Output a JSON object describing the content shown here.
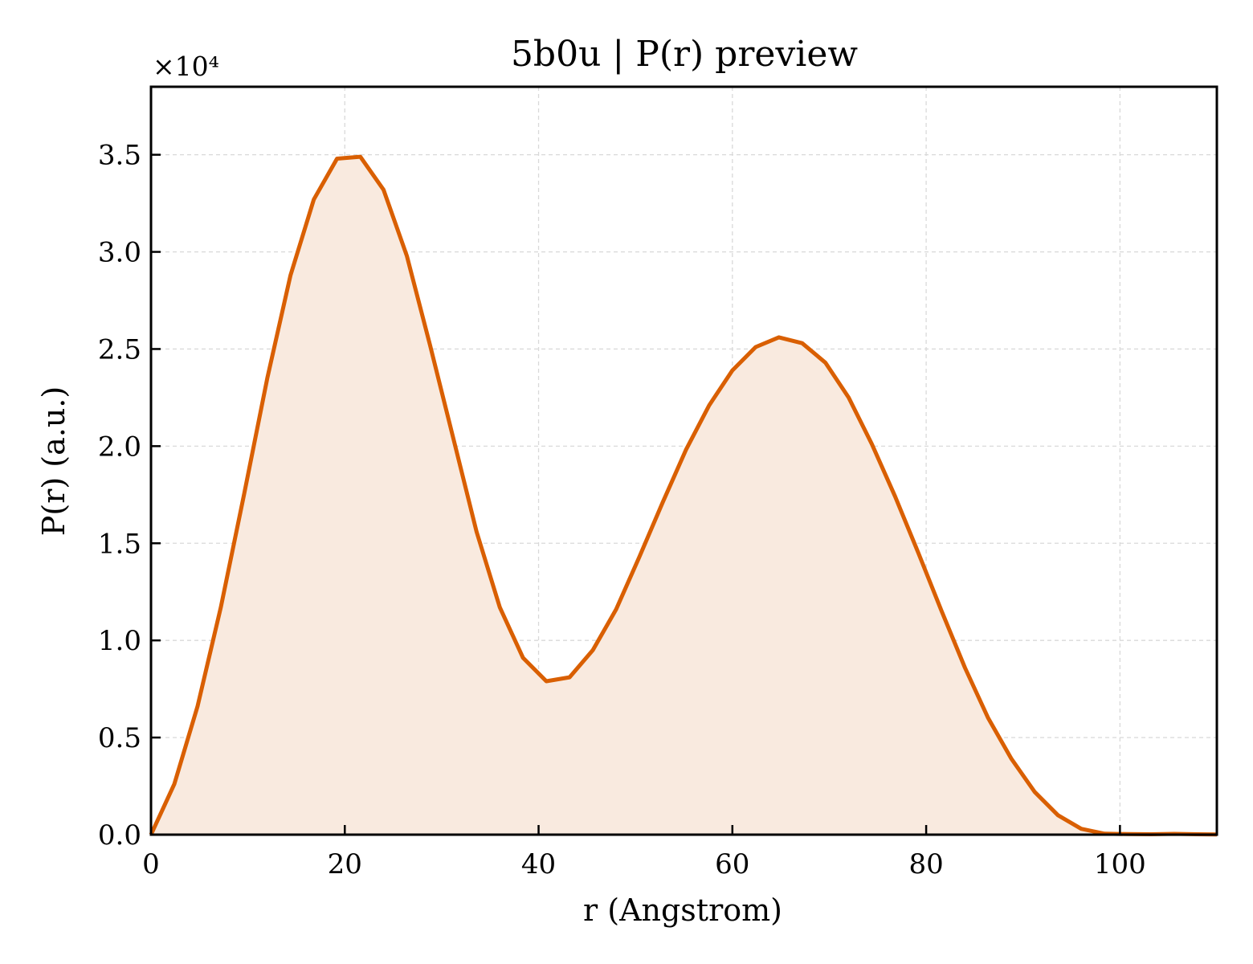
{
  "chart_data": {
    "type": "area",
    "title": "5b0u | P(r) preview",
    "xlabel": "r (Angstrom)",
    "ylabel": "P(r) (a.u.)",
    "y_multiplier_label": "×10⁴",
    "xlim": [
      0,
      110
    ],
    "ylim": [
      0,
      3.85
    ],
    "xticks": [
      0,
      20,
      40,
      60,
      80,
      100
    ],
    "xtick_labels": [
      "0",
      "20",
      "40",
      "60",
      "80",
      "100"
    ],
    "yticks": [
      0,
      0.5,
      1.0,
      1.5,
      2.0,
      2.5,
      3.0,
      3.5
    ],
    "ytick_labels": [
      "0.0",
      "0.5",
      "1.0",
      "1.5",
      "2.0",
      "2.5",
      "3.0",
      "3.5"
    ],
    "grid": true,
    "legend": "none",
    "line_color": "#d95f02",
    "fill_color": "#f9eadf",
    "series": [
      {
        "x": [
          0,
          2.4,
          4.8,
          7.2,
          9.6,
          12.0,
          14.4,
          16.8,
          19.2,
          21.6,
          24.0,
          26.4,
          28.8,
          31.2,
          33.6,
          36.0,
          38.4,
          40.8,
          43.2,
          45.6,
          48.0,
          50.4,
          52.8,
          55.2,
          57.6,
          60.0,
          62.4,
          64.8,
          67.2,
          69.6,
          72.0,
          74.4,
          76.8,
          79.2,
          81.6,
          84.0,
          86.4,
          88.8,
          91.2,
          93.6,
          96.0,
          98.4,
          100.8,
          103.2,
          105.6,
          108.0,
          110.0
        ],
        "values": [
          0.0,
          0.26,
          0.66,
          1.17,
          1.75,
          2.35,
          2.88,
          3.27,
          3.48,
          3.49,
          3.32,
          2.98,
          2.52,
          2.04,
          1.56,
          1.17,
          0.91,
          0.79,
          0.81,
          0.95,
          1.16,
          1.43,
          1.71,
          1.98,
          2.21,
          2.39,
          2.51,
          2.56,
          2.53,
          2.43,
          2.25,
          2.01,
          1.74,
          1.45,
          1.15,
          0.86,
          0.6,
          0.39,
          0.22,
          0.1,
          0.03,
          0.005,
          0.003,
          0.002,
          0.004,
          0.002,
          0.001
        ]
      }
    ]
  }
}
